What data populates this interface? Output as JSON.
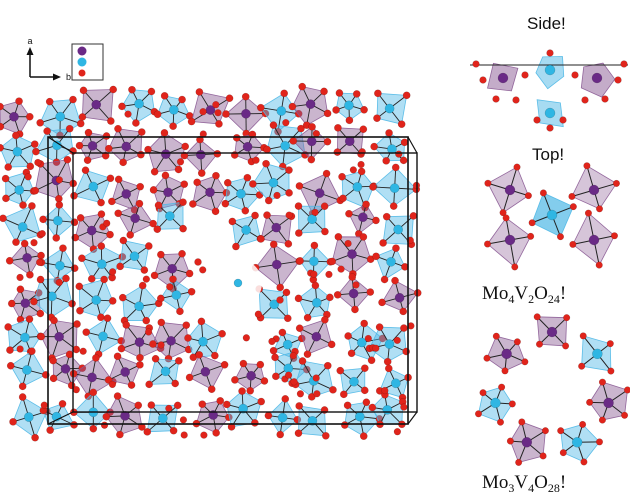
{
  "axes": {
    "a": "a",
    "b": "b"
  },
  "colors": {
    "mo_atom": "#6a2a86",
    "v_atom": "#2fb6e3",
    "o_atom": "#e0241b",
    "mo_poly": "#8a5a93",
    "v_poly": "#4fb8e6"
  },
  "panels": {
    "side": "Side!",
    "top": "Top!",
    "mo4": {
      "el1": "Mo",
      "n1": "4",
      "el2": "V",
      "n2": "2",
      "el3": "O",
      "n3": "24",
      "tail": "!"
    },
    "mo3": {
      "el1": "Mo",
      "n1": "3",
      "el2": "V",
      "n2": "4",
      "el3": "O",
      "n3": "28",
      "tail": "!"
    }
  }
}
